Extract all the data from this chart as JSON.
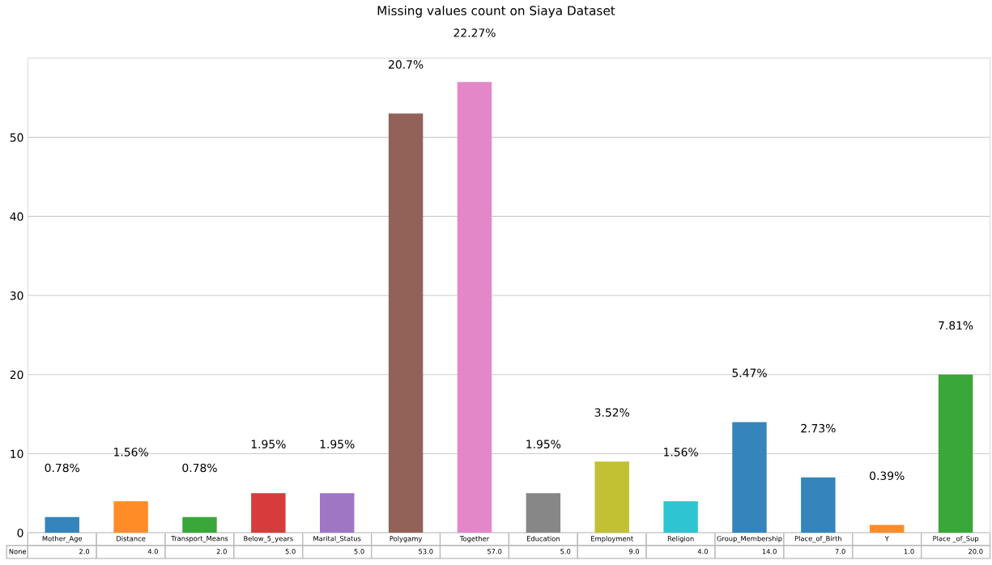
{
  "chart_data": {
    "type": "bar",
    "title": "Missing values count on Siaya Dataset",
    "categories": [
      "Mother_Age",
      "Distance",
      "Transport_Means",
      "Below_5_years",
      "Marital_Status",
      "Polygamy",
      "Together",
      "Education",
      "Employment",
      "Religion",
      "Group_Membership",
      "Place_of_Birth",
      "Y",
      "Place _of_Sup"
    ],
    "series": [
      {
        "name": "None",
        "values": [
          2,
          4,
          2,
          5,
          5,
          53,
          57,
          5,
          9,
          4,
          14,
          7,
          1,
          20
        ],
        "colors": [
          "#3585bc",
          "#ff8c26",
          "#3aa73a",
          "#d83b3c",
          "#9e76c4",
          "#926259",
          "#e487c9",
          "#878787",
          "#c2c133",
          "#2ec4d2",
          "#3585bc",
          "#3585bc",
          "#ff8c26",
          "#3aa73a"
        ],
        "value_labels": [
          "2.0",
          "4.0",
          "2.0",
          "5.0",
          "5.0",
          "53.0",
          "57.0",
          "5.0",
          "9.0",
          "4.0",
          "14.0",
          "7.0",
          "1.0",
          "20.0"
        ]
      }
    ],
    "annotations": [
      "0.78%",
      "1.56%",
      "0.78%",
      "1.95%",
      "1.95%",
      "20.7%",
      "22.27%",
      "1.95%",
      "3.52%",
      "1.56%",
      "5.47%",
      "2.73%",
      "0.39%",
      "7.81%"
    ],
    "ylim": [
      0,
      60
    ],
    "yticks": [
      0,
      10,
      20,
      30,
      40,
      50
    ],
    "grid": "y"
  }
}
